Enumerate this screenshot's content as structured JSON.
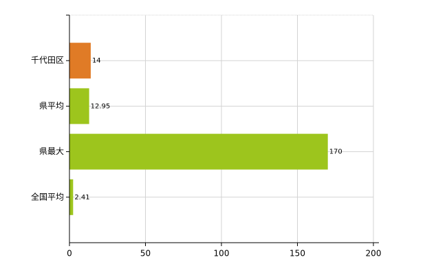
{
  "chart_data": {
    "type": "barh",
    "categories": [
      "千代田区",
      "県平均",
      "県最大",
      "全国平均"
    ],
    "values": [
      14,
      12.95,
      170,
      2.41
    ],
    "colors": [
      "#e07b26",
      "#9dc51d",
      "#9dc51d",
      "#9dc51d"
    ],
    "xlim": [
      0,
      200
    ],
    "xticks": [
      0,
      50,
      100,
      150,
      200
    ],
    "grid": true
  }
}
